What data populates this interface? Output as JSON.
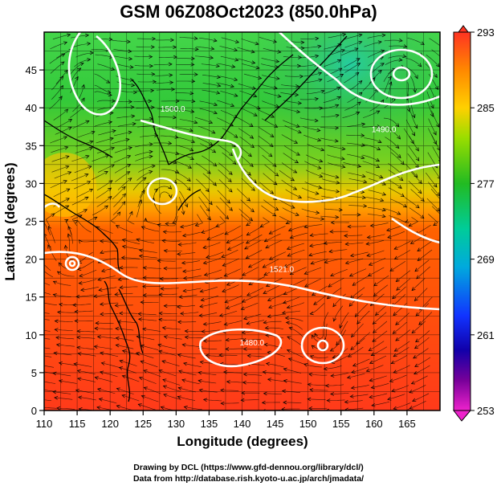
{
  "title": "GSM 06Z08Oct2023 (850.0hPa)",
  "xlabel": "Longitude (degrees)",
  "ylabel": "Latitude  (degrees)",
  "credit_line_1": "Drawing by DCL (https://www.gfd-dennou.org/library/dcl/)",
  "credit_line_2": "Data from http://database.rish.kyoto-u.ac.jp/arch/jmadata/",
  "x_ticks": [
    "110",
    "115",
    "120",
    "125",
    "130",
    "135",
    "140",
    "145",
    "150",
    "155",
    "160",
    "165"
  ],
  "y_ticks": [
    "0",
    "5",
    "10",
    "15",
    "20",
    "25",
    "30",
    "35",
    "40",
    "45"
  ],
  "colorbar_ticks": [
    "293",
    "285",
    "277",
    "269",
    "261",
    "253"
  ],
  "colorbar_range": [
    253,
    293
  ],
  "x_range": [
    110,
    170
  ],
  "y_range": [
    0,
    50
  ],
  "contour_labels": [
    {
      "text": "1521.0",
      "lon": 146,
      "lat": 18.3
    },
    {
      "text": "1500.0",
      "lon": 129.5,
      "lat": 39.5
    },
    {
      "text": "1480.0",
      "lon": 141.5,
      "lat": 8.6
    },
    {
      "text": "1490.0",
      "lon": 161.5,
      "lat": 36.8
    }
  ],
  "colors": {
    "cold": "#d100d1",
    "cool": "#0033ff",
    "mid": "#22cc22",
    "warm": "#ffcc00",
    "hot": "#ff4400"
  }
}
